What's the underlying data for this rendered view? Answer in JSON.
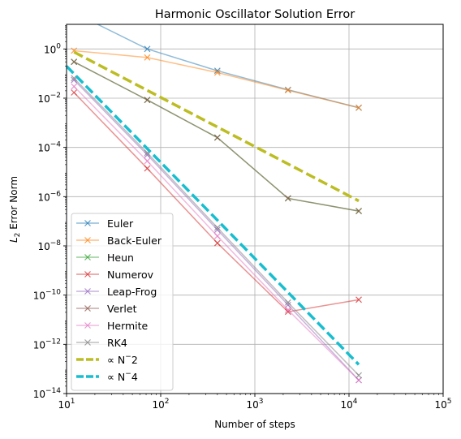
{
  "chart_data": {
    "type": "line",
    "title": "Harmonic Oscillator Solution Error",
    "xlabel": "Number of steps",
    "ylabel": "L2 Error Norm",
    "ylabel_parts": {
      "base": "L",
      "sub": "2",
      "rest": " Error Norm"
    },
    "xscale": "log",
    "yscale": "log",
    "xlim": [
      10,
      100000
    ],
    "ylim": [
      1e-14,
      10
    ],
    "grid": true,
    "legend_position": "lower-left",
    "x_ticks": [
      {
        "value": 10,
        "base": "10",
        "exp": "1"
      },
      {
        "value": 100,
        "base": "10",
        "exp": "2"
      },
      {
        "value": 1000,
        "base": "10",
        "exp": "3"
      },
      {
        "value": 10000,
        "base": "10",
        "exp": "4"
      },
      {
        "value": 100000,
        "base": "10",
        "exp": "5"
      }
    ],
    "y_ticks": [
      {
        "value": 1,
        "base": "10",
        "exp": "0"
      },
      {
        "value": 0.01,
        "base": "10",
        "exp": "−2"
      },
      {
        "value": 0.0001,
        "base": "10",
        "exp": "−4"
      },
      {
        "value": 1e-06,
        "base": "10",
        "exp": "−6"
      },
      {
        "value": 1e-08,
        "base": "10",
        "exp": "−8"
      },
      {
        "value": 1e-10,
        "base": "10",
        "exp": "−10"
      },
      {
        "value": 1e-12,
        "base": "10",
        "exp": "−12"
      },
      {
        "value": 1e-14,
        "base": "10",
        "exp": "−14"
      }
    ],
    "series": [
      {
        "name": "Euler",
        "color": "#1f77b4",
        "marker": "x",
        "style": "solid",
        "x": [
          12,
          72,
          400,
          2250,
          12700
        ],
        "y": [
          30,
          1.0,
          0.13,
          0.022,
          0.0041
        ]
      },
      {
        "name": "Back-Euler",
        "color": "#ff7f0e",
        "marker": "x",
        "style": "solid",
        "x": [
          12,
          72,
          400,
          2250,
          12700
        ],
        "y": [
          0.85,
          0.45,
          0.11,
          0.021,
          0.0041
        ]
      },
      {
        "name": "Heun",
        "color": "#2ca02c",
        "marker": "x",
        "style": "solid",
        "x": [
          12,
          72,
          400,
          2250,
          12700
        ],
        "y": [
          0.3,
          0.0085,
          0.00025,
          8.5e-07,
          2.6e-07
        ]
      },
      {
        "name": "Numerov",
        "color": "#d62728",
        "marker": "x",
        "style": "solid",
        "x": [
          12,
          72,
          400,
          2250,
          12700
        ],
        "y": [
          0.017,
          1.4e-05,
          1.3e-08,
          2.1e-11,
          6.5e-11
        ]
      },
      {
        "name": "Leap-Frog",
        "color": "#9467bd",
        "marker": "x",
        "style": "solid",
        "x": [
          12,
          72,
          400,
          2250,
          12700
        ],
        "y": [
          0.055,
          5e-05,
          4.5e-08,
          4e-11,
          3.5e-14
        ]
      },
      {
        "name": "Verlet",
        "color": "#8c564b",
        "marker": "x",
        "style": "solid",
        "x": [
          12,
          72,
          400,
          2250,
          12700
        ],
        "y": [
          0.3,
          0.0085,
          0.00025,
          8.5e-07,
          2.6e-07
        ]
      },
      {
        "name": "Hermite",
        "color": "#e377c2",
        "marker": "x",
        "style": "solid",
        "x": [
          12,
          72,
          400,
          2250,
          12700
        ],
        "y": [
          0.03,
          2.8e-05,
          2.5e-08,
          2.5e-11,
          3.5e-14
        ]
      },
      {
        "name": "RK4",
        "color": "#7f7f7f",
        "marker": "x",
        "style": "solid",
        "x": [
          12,
          72,
          400,
          2250,
          12700
        ],
        "y": [
          0.065,
          6e-05,
          5.5e-08,
          5e-11,
          5.5e-14
        ]
      },
      {
        "name": "∝ N^−2",
        "legend_base": "∝ N",
        "legend_exp": "−",
        "legend_tail": "2",
        "color": "#bcbd22",
        "marker": "none",
        "style": "dashed",
        "x": [
          12,
          12700
        ],
        "y": [
          0.75,
          6.7e-07
        ]
      },
      {
        "name": "∝ N^−4",
        "legend_base": "∝ N",
        "legend_exp": "−",
        "legend_tail": "4",
        "color": "#17becf",
        "marker": "none",
        "style": "dashed",
        "x": [
          10,
          12700
        ],
        "y": [
          0.2,
          1.5e-13
        ]
      }
    ]
  }
}
